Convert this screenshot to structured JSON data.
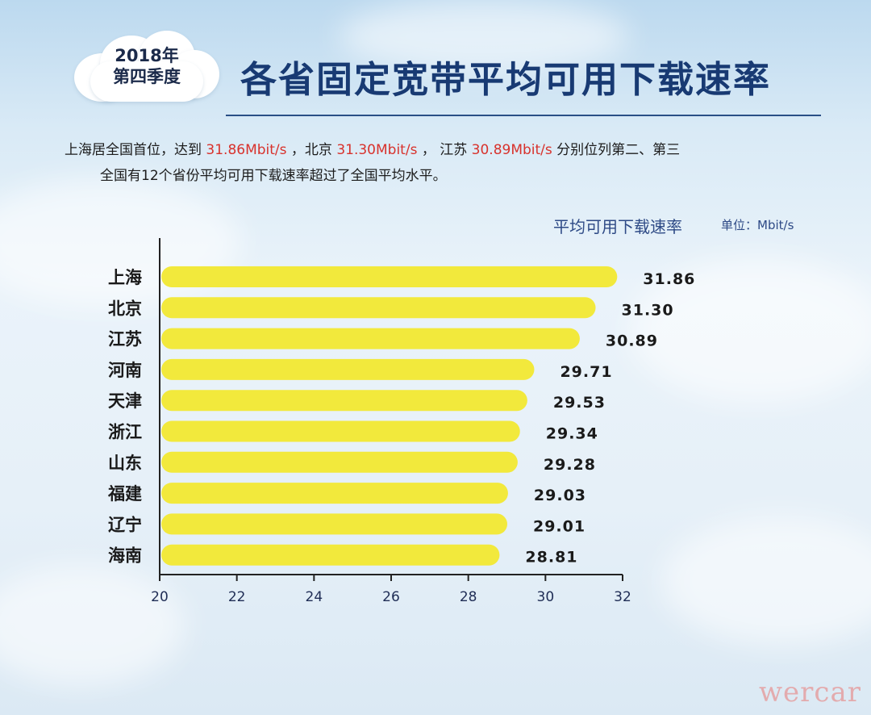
{
  "header": {
    "badge_line1": "2018年",
    "badge_line2": "第四季度",
    "title": "各省固定宽带平均可用下载速率"
  },
  "summary": {
    "p1": "上海居全国首位，达到",
    "v1": "31.86Mbit/s",
    "p2": "，北京",
    "v2": "31.30Mbit/s",
    "p3": "，  江苏",
    "v3": "30.89Mbit/s",
    "p4": "分别位列第二、第三",
    "line2": "全国有12个省份平均可用下载速率超过了全国平均水平。"
  },
  "chart_data": {
    "type": "bar",
    "orientation": "horizontal",
    "title": "平均可用下载速率",
    "unit": "单位：Mbit/s",
    "categories": [
      "上海",
      "北京",
      "江苏",
      "河南",
      "天津",
      "浙江",
      "山东",
      "福建",
      "辽宁",
      "海南"
    ],
    "values": [
      31.86,
      31.3,
      30.89,
      29.71,
      29.53,
      29.34,
      29.28,
      29.03,
      29.01,
      28.81
    ],
    "value_labels": [
      "31.86",
      "31.30",
      "30.89",
      "29.71",
      "29.53",
      "29.34",
      "29.28",
      "29.03",
      "29.01",
      "28.81"
    ],
    "xlim": [
      20,
      32
    ],
    "xticks": [
      "20",
      "22",
      "24",
      "26",
      "28",
      "30",
      "32"
    ],
    "grid": false,
    "bar_color": "#f2e93c"
  },
  "watermark": "wercar"
}
